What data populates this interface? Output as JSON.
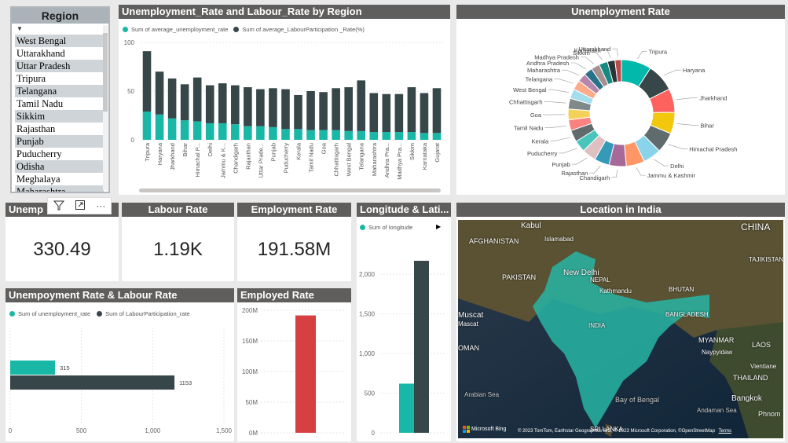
{
  "slicer": {
    "title": "Region",
    "items": [
      "West Bengal",
      "Uttarakhand",
      "Uttar Pradesh",
      "Tripura",
      "Telangana",
      "Tamil Nadu",
      "Sikkim",
      "Rajasthan",
      "Punjab",
      "Puducherry",
      "Odisha",
      "Meghalaya",
      "Maharashtra"
    ]
  },
  "region_chart": {
    "title": "Unemployment_Rate and Labour_Rate by Region",
    "legend": [
      "Sum of average_unemployment_rate",
      "Sum of average_LabourParticipation _Rate(%)"
    ]
  },
  "donut": {
    "title": "Unemployment Rate"
  },
  "kpis": {
    "unemp_title": "Unemp",
    "unemp_value": "330.49",
    "labour_title": "Labour Rate",
    "labour_value": "1.19K",
    "employment_title": "Employment Rate",
    "employment_value": "191.58M"
  },
  "visual_toolbar": {
    "filter": "filter-icon",
    "focus": "focus-mode-icon",
    "more": "···"
  },
  "longlat": {
    "title": "Longitude & Lati...",
    "legend": "Sum of longitude"
  },
  "map": {
    "title": "Location in India",
    "labels": [
      "Kabul",
      "Islamabad",
      "AFGHANISTAN",
      "PAKISTAN",
      "New Delhi",
      "NEPAL",
      "Kathmandu",
      "BHUTAN",
      "BANGLADESH",
      "INDIA",
      "MYANMAR",
      "LAOS",
      "CHINA",
      "TAJIKISTAN",
      "Muscat",
      "Mascat",
      "OMAN",
      "Arabian Sea",
      "Bay of Bengal",
      "Naypyidaw",
      "Vientiane",
      "THAILAND",
      "Bangkok",
      "Andaman Sea",
      "SRI LANKA",
      "Phnom"
    ],
    "bing": "Microsoft Bing",
    "copyright": "© 2023 TomTom, Earthstar Geographics SIO, © 2023 Microsoft Corporation, ©OpenStreetMap",
    "terms": "Terms"
  },
  "hbar": {
    "title": "Unempoyment Rate & Labour Rate",
    "legend": [
      "Sum of unemployment_rate",
      "Sum of LabourParticipation_rate"
    ]
  },
  "employed": {
    "title": "Employed Rate"
  },
  "chart_data": [
    {
      "type": "bar",
      "title": "Unemployment_Rate and Labour_Rate by Region",
      "categories": [
        "Tripura",
        "Haryana",
        "Jharkhand",
        "Bihar",
        "Himachal P...",
        "Delhi",
        "Jammu & K...",
        "Chandigarh",
        "Rajasthan",
        "Uttar Prade...",
        "Punjab",
        "Puducherry",
        "Kerala",
        "Tamil Nadu",
        "Goa",
        "Chhattisgarh",
        "West Bengal",
        "Telangana",
        "Maharashtra",
        "Andhra Pra...",
        "Madhya Pra...",
        "Sikkim",
        "Karnataka",
        "Gujarat"
      ],
      "series": [
        {
          "name": "Sum of average_unemployment_rate",
          "color": "#19b8a6",
          "values": [
            29,
            26,
            22,
            20,
            19,
            17,
            17,
            16,
            14,
            14,
            13,
            11,
            11,
            10,
            10,
            10,
            9,
            9,
            8,
            8,
            8,
            8,
            7,
            7
          ]
        },
        {
          "name": "Sum of average_LabourParticipation _Rate(%)",
          "color": "#374649",
          "values": [
            62,
            44,
            41,
            37,
            45,
            39,
            41,
            40,
            40,
            38,
            40,
            41,
            35,
            40,
            39,
            43,
            45,
            52,
            40,
            39,
            39,
            46,
            41,
            46
          ]
        }
      ],
      "stacked": true,
      "ylim": [
        0,
        100
      ],
      "yticks": [
        0,
        50,
        100
      ]
    },
    {
      "type": "pie",
      "title": "Unemployment Rate",
      "donut": true,
      "labels": [
        "Tripura",
        "Haryana",
        "Jharkhand",
        "Bihar",
        "Himachal Pradesh",
        "Delhi",
        "Jammu & Kashmir",
        "Chandigarh",
        "Rajasthan",
        "Punjab",
        "Puducherry",
        "Kerala",
        "Tamil Nadu",
        "Goa",
        "Chhattisgarh",
        "West Bengal",
        "Telangana",
        "Maharashtra",
        "Andhra Pradesh",
        "Madhya Pradesh",
        "Sikkim",
        "Karnataka",
        "Uttarakhand"
      ],
      "values": [
        28,
        26,
        22,
        20,
        19,
        17,
        17,
        16,
        14,
        13,
        11,
        11,
        10,
        10,
        10,
        9,
        9,
        8,
        8,
        8,
        8,
        7,
        6
      ],
      "colors": [
        "#01b8aa",
        "#374649",
        "#fd625e",
        "#f2c80f",
        "#5f6b6d",
        "#8ad4eb",
        "#fe9666",
        "#a66999",
        "#3599b8",
        "#dfbfbf",
        "#4ac5bb",
        "#5f6b6d",
        "#fb8281",
        "#f4d25a",
        "#7f898a",
        "#a4ddee",
        "#fdab89",
        "#b687ac",
        "#28738a",
        "#a78f8f",
        "#168980",
        "#293537",
        "#bb4a4a"
      ]
    },
    {
      "type": "bar",
      "title": "Unempoyment Rate & Labour Rate",
      "orientation": "horizontal",
      "series": [
        {
          "name": "Sum of unemployment_rate",
          "color": "#19b8a6",
          "values": [
            315
          ]
        },
        {
          "name": "Sum of LabourParticipation_rate",
          "color": "#374649",
          "values": [
            1153
          ]
        }
      ],
      "xlim": [
        0,
        1500
      ],
      "xticks": [
        "0",
        "500",
        "1,000",
        "1,500"
      ]
    },
    {
      "type": "bar",
      "title": "Employed Rate",
      "values": [
        191.58
      ],
      "color": "#d64040",
      "ylim": [
        0,
        200
      ],
      "yticks": [
        "0M",
        "50M",
        "100M",
        "150M",
        "200M"
      ],
      "ylabel": ""
    },
    {
      "type": "bar",
      "title": "Longitude & Lati...",
      "series": [
        {
          "name": "Sum of longitude",
          "color": "#19b8a6",
          "values": [
            620
          ]
        },
        {
          "name": "",
          "color": "#374649",
          "values": [
            2170
          ]
        }
      ],
      "ylim": [
        0,
        2200
      ],
      "yticks": [
        "0",
        "500",
        "1,000",
        "1,500",
        "2,000"
      ]
    }
  ]
}
